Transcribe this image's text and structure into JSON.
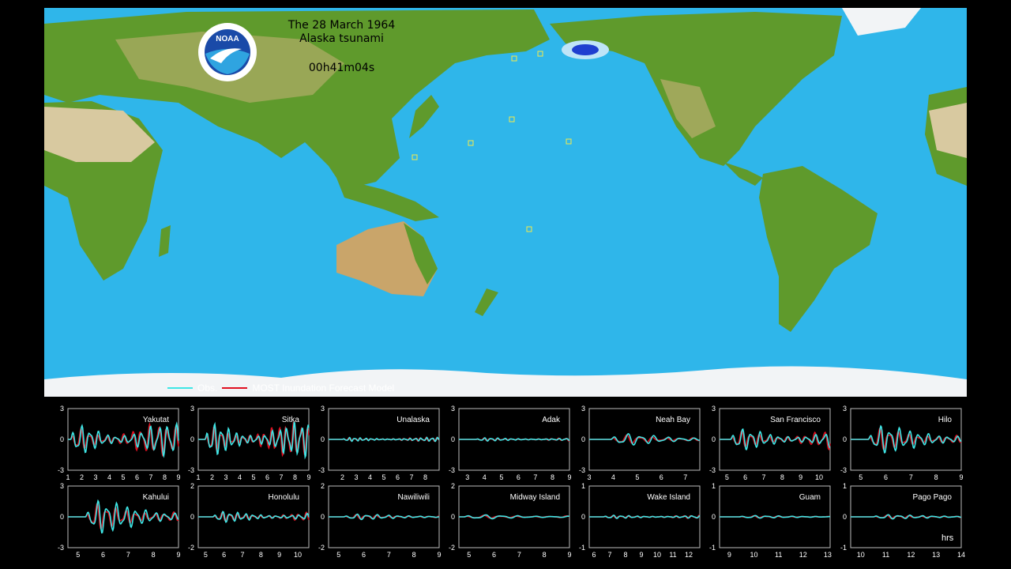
{
  "map": {
    "title_line1": "The 28 March 1964",
    "title_line2": "Alaska tsunami",
    "elapsed_time": "00h41m04s",
    "logo_text": "NOAA",
    "colors": {
      "ocean": "#2fb6ea",
      "land": "#5f9a2c",
      "desert": "#c9b27a",
      "ice": "#f2f4f6",
      "source": "#1f3fd0"
    }
  },
  "legend": {
    "items": [
      {
        "label": "Obs.",
        "color": "#3fe6e6"
      },
      {
        "label": "MOST Inundation Forecast Model",
        "color": "#e01020"
      }
    ]
  },
  "time_unit_label": "hrs",
  "chart_data": [
    {
      "type": "line",
      "station": "Yakutat",
      "xlim": [
        1,
        9
      ],
      "ylim": [
        -3,
        3
      ],
      "yticks": [
        -3,
        0,
        3
      ],
      "xticks": [
        1,
        2,
        3,
        4,
        5,
        6,
        7,
        8,
        9
      ],
      "series": [
        {
          "name": "Obs.",
          "color": "#3fe6e6"
        },
        {
          "name": "MOST Inundation Forecast Model",
          "color": "#e01020"
        }
      ],
      "onset": 1.2,
      "amp": 0.55,
      "freq": 1.6
    },
    {
      "type": "line",
      "station": "Sitka",
      "xlim": [
        1,
        9
      ],
      "ylim": [
        -3,
        3
      ],
      "yticks": [
        -3,
        0,
        3
      ],
      "xticks": [
        1,
        2,
        3,
        4,
        5,
        6,
        7,
        8,
        9
      ],
      "series": [
        {
          "name": "Obs.",
          "color": "#3fe6e6"
        },
        {
          "name": "MOST Inundation Forecast Model",
          "color": "#e01020"
        }
      ],
      "onset": 1.5,
      "amp": 0.6,
      "freq": 1.9
    },
    {
      "type": "line",
      "station": "Unalaska",
      "xlim": [
        1,
        9
      ],
      "ylim": [
        -3,
        3
      ],
      "yticks": [
        -3,
        0,
        3
      ],
      "xticks": [
        2,
        3,
        4,
        5,
        6,
        7,
        8
      ],
      "series": [
        {
          "name": "Obs.",
          "color": "#3fe6e6"
        },
        {
          "name": "MOST Inundation Forecast Model",
          "color": "#e01020"
        }
      ],
      "onset": 2.0,
      "amp": 0.07,
      "freq": 2.5
    },
    {
      "type": "line",
      "station": "Adak",
      "xlim": [
        2.5,
        9
      ],
      "ylim": [
        -3,
        3
      ],
      "yticks": [
        -3,
        0,
        3
      ],
      "xticks": [
        3,
        4,
        5,
        6,
        7,
        8,
        9
      ],
      "series": [
        {
          "name": "Obs.",
          "color": "#3fe6e6"
        },
        {
          "name": "MOST Inundation Forecast Model",
          "color": "#e01020"
        }
      ],
      "onset": 3.5,
      "amp": 0.06,
      "freq": 2.5
    },
    {
      "type": "line",
      "station": "Neah Bay",
      "xlim": [
        3,
        7.6
      ],
      "ylim": [
        -3,
        3
      ],
      "yticks": [
        -3,
        0,
        3
      ],
      "xticks": [
        3,
        4,
        5,
        6,
        7
      ],
      "series": [
        {
          "name": "Obs.",
          "color": "#3fe6e6"
        },
        {
          "name": "MOST Inundation Forecast Model",
          "color": "#e01020"
        }
      ],
      "onset": 3.9,
      "amp": 0.22,
      "freq": 1.8
    },
    {
      "type": "line",
      "station": "San Francisco",
      "xlim": [
        4.6,
        10.6
      ],
      "ylim": [
        -3,
        3
      ],
      "yticks": [
        -3,
        0,
        3
      ],
      "xticks": [
        5,
        6,
        7,
        8,
        9,
        10
      ],
      "series": [
        {
          "name": "Obs.",
          "color": "#3fe6e6"
        },
        {
          "name": "MOST Inundation Forecast Model",
          "color": "#e01020"
        }
      ],
      "onset": 5.2,
      "amp": 0.4,
      "freq": 2.0
    },
    {
      "type": "line",
      "station": "Hilo",
      "xlim": [
        4.6,
        9
      ],
      "ylim": [
        -3,
        3
      ],
      "yticks": [
        -3,
        0,
        3
      ],
      "xticks": [
        5,
        6,
        7,
        8,
        9
      ],
      "series": [
        {
          "name": "Obs.",
          "color": "#3fe6e6"
        },
        {
          "name": "MOST Inundation Forecast Model",
          "color": "#e01020"
        }
      ],
      "onset": 5.3,
      "amp": 0.5,
      "freq": 2.6
    },
    {
      "type": "line",
      "station": "Kahului",
      "xlim": [
        4.6,
        9
      ],
      "ylim": [
        -3,
        3
      ],
      "yticks": [
        -3,
        0,
        3
      ],
      "xticks": [
        5,
        6,
        7,
        8,
        9
      ],
      "series": [
        {
          "name": "Obs.",
          "color": "#3fe6e6"
        },
        {
          "name": "MOST Inundation Forecast Model",
          "color": "#e01020"
        }
      ],
      "onset": 5.3,
      "amp": 0.6,
      "freq": 2.6
    },
    {
      "type": "line",
      "station": "Honolulu",
      "xlim": [
        4.6,
        10.6
      ],
      "ylim": [
        -2,
        2
      ],
      "yticks": [
        -2,
        0,
        2
      ],
      "xticks": [
        5,
        6,
        7,
        8,
        9,
        10
      ],
      "series": [
        {
          "name": "Obs.",
          "color": "#3fe6e6"
        },
        {
          "name": "MOST Inundation Forecast Model",
          "color": "#e01020"
        }
      ],
      "onset": 5.4,
      "amp": 0.2,
      "freq": 2.4
    },
    {
      "type": "line",
      "station": "Nawiliwili",
      "xlim": [
        4.6,
        9
      ],
      "ylim": [
        -2,
        2
      ],
      "yticks": [
        -2,
        0,
        2
      ],
      "xticks": [
        5,
        6,
        7,
        8,
        9
      ],
      "series": [
        {
          "name": "Obs.",
          "color": "#3fe6e6"
        },
        {
          "name": "MOST Inundation Forecast Model",
          "color": "#e01020"
        }
      ],
      "onset": 5.2,
      "amp": 0.1,
      "freq": 2.4
    },
    {
      "type": "line",
      "station": "Midway Island",
      "xlim": [
        4.6,
        9
      ],
      "ylim": [
        -2,
        2
      ],
      "yticks": [
        -2,
        0,
        2
      ],
      "xticks": [
        5,
        6,
        7,
        8,
        9
      ],
      "series": [
        {
          "name": "Obs.",
          "color": "#3fe6e6"
        },
        {
          "name": "MOST Inundation Forecast Model",
          "color": "#e01020"
        }
      ],
      "onset": 4.8,
      "amp": 0.08,
      "freq": 1.5
    },
    {
      "type": "line",
      "station": "Wake Island",
      "xlim": [
        5.7,
        12.7
      ],
      "ylim": [
        -1,
        1
      ],
      "yticks": [
        -1,
        0,
        1
      ],
      "xticks": [
        6,
        7,
        8,
        9,
        10,
        11,
        12
      ],
      "series": [
        {
          "name": "Obs.",
          "color": "#3fe6e6"
        },
        {
          "name": "MOST Inundation Forecast Model",
          "color": "#e01020"
        }
      ],
      "onset": 6.6,
      "amp": 0.06,
      "freq": 2.0
    },
    {
      "type": "line",
      "station": "Guam",
      "xlim": [
        8.6,
        13.1
      ],
      "ylim": [
        -1,
        1
      ],
      "yticks": [
        -1,
        0,
        1
      ],
      "xticks": [
        9,
        10,
        11,
        12,
        13
      ],
      "series": [
        {
          "name": "Obs.",
          "color": "#3fe6e6"
        },
        {
          "name": "MOST Inundation Forecast Model",
          "color": "#e01020"
        }
      ],
      "onset": 9.4,
      "amp": 0.05,
      "freq": 2.0
    },
    {
      "type": "line",
      "station": "Pago Pago",
      "xlim": [
        9.6,
        14
      ],
      "ylim": [
        -1,
        1
      ],
      "yticks": [
        -1,
        0,
        1
      ],
      "xticks": [
        10,
        11,
        12,
        13,
        14
      ],
      "series": [
        {
          "name": "Obs.",
          "color": "#3fe6e6"
        },
        {
          "name": "MOST Inundation Forecast Model",
          "color": "#e01020"
        }
      ],
      "onset": 10.5,
      "amp": 0.08,
      "freq": 2.2
    }
  ]
}
